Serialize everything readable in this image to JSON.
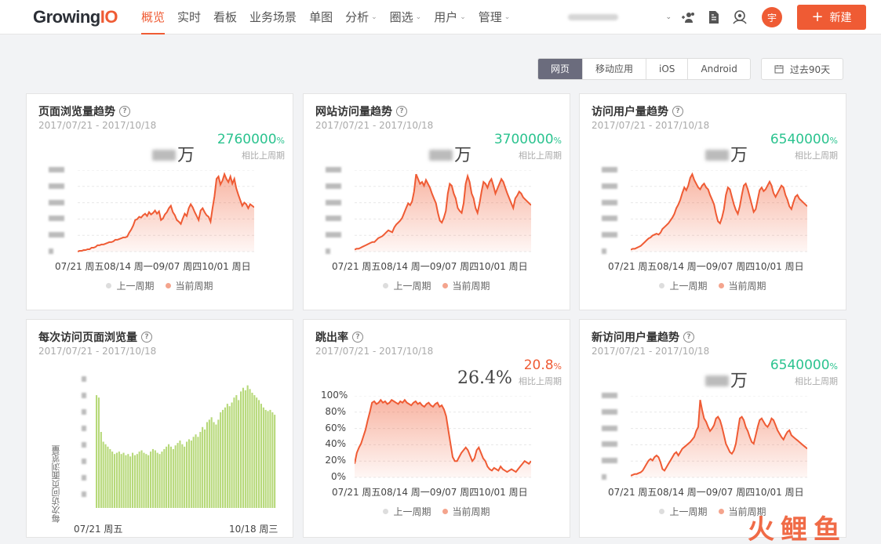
{
  "header": {
    "logo_main": "Growing",
    "logo_accent": "IO",
    "nav": [
      {
        "label": "概览",
        "active": true,
        "dropdown": false
      },
      {
        "label": "实时",
        "active": false,
        "dropdown": false
      },
      {
        "label": "看板",
        "active": false,
        "dropdown": false
      },
      {
        "label": "业务场景",
        "active": false,
        "dropdown": false
      },
      {
        "label": "单图",
        "active": false,
        "dropdown": false
      },
      {
        "label": "分析",
        "active": false,
        "dropdown": true
      },
      {
        "label": "圈选",
        "active": false,
        "dropdown": true
      },
      {
        "label": "用户",
        "active": false,
        "dropdown": true
      },
      {
        "label": "管理",
        "active": false,
        "dropdown": true
      }
    ],
    "avatar_text": "宇",
    "new_button": "新建"
  },
  "filters": {
    "platform_tabs": [
      "网页",
      "移动应用",
      "iOS",
      "Android"
    ],
    "active_tab": "网页",
    "date_range": "过去90天"
  },
  "legend": {
    "prev": "上一周期",
    "curr": "当前周期"
  },
  "colors": {
    "accent": "#ef5b34",
    "green": "#2bc38f",
    "bar": "#b7d97a"
  },
  "cards": [
    {
      "title": "页面浏览量趋势",
      "date": "2017/07/21 - 2017/10/18",
      "unit": "万",
      "pct": "2760000",
      "pct_symbol": "%",
      "compare": "相比上周期",
      "pct_color": "green",
      "xlabels": [
        "07/21 周五",
        "08/14 周一",
        "09/07 周四",
        "10/01 周日"
      ]
    },
    {
      "title": "网站访问量趋势",
      "date": "2017/07/21 - 2017/10/18",
      "unit": "万",
      "pct": "3700000",
      "pct_symbol": "%",
      "compare": "相比上周期",
      "pct_color": "green",
      "xlabels": [
        "07/21 周五",
        "08/14 周一",
        "09/07 周四",
        "10/01 周日"
      ]
    },
    {
      "title": "访问用户量趋势",
      "date": "2017/07/21 - 2017/10/18",
      "unit": "万",
      "pct": "6540000",
      "pct_symbol": "%",
      "compare": "相比上周期",
      "pct_color": "green",
      "xlabels": [
        "07/21 周五",
        "08/14 周一",
        "09/07 周四",
        "10/01 周日"
      ]
    },
    {
      "title": "每次访问页面浏览量",
      "date": "2017/07/21 - 2017/10/18",
      "ylabel": "每次访问页面浏览量",
      "xlabels": [
        "07/21 周五",
        "10/18 周三"
      ]
    },
    {
      "title": "跳出率",
      "date": "2017/07/21 - 2017/10/18",
      "value": "26.4%",
      "pct": "20.8",
      "pct_symbol": "%",
      "compare": "相比上周期",
      "pct_color": "red",
      "yticks": [
        "100%",
        "80%",
        "60%",
        "40%",
        "20%",
        "0%"
      ],
      "xlabels": [
        "07/21 周五",
        "08/14 周一",
        "09/07 周四",
        "10/01 周日"
      ]
    },
    {
      "title": "新访问用户量趋势",
      "date": "2017/07/21 - 2017/10/18",
      "unit": "万",
      "pct": "6540000",
      "pct_symbol": "%",
      "compare": "相比上周期",
      "pct_color": "green",
      "xlabels": [
        "07/21 周五",
        "08/14 周一",
        "09/07 周四",
        "10/01 周日"
      ]
    }
  ],
  "chart_data": [
    {
      "type": "area",
      "title": "页面浏览量趋势",
      "series": [
        {
          "name": "当前周期",
          "values": [
            0,
            1,
            1,
            2,
            2,
            3,
            3,
            5,
            5,
            6,
            8,
            8,
            9,
            9,
            10,
            11,
            12,
            12,
            13,
            15,
            15,
            16,
            17,
            18,
            18,
            19,
            24,
            28,
            33,
            40,
            41,
            44,
            43,
            46,
            48,
            45,
            50,
            47,
            49,
            52,
            48,
            51,
            40,
            42,
            47,
            50,
            55,
            58,
            50,
            46,
            40,
            38,
            35,
            42,
            48,
            45,
            55,
            60,
            56,
            50,
            45,
            40,
            52,
            55,
            50,
            46,
            44,
            38,
            55,
            70,
            92,
            95,
            85,
            90,
            98,
            92,
            88,
            95,
            86,
            92,
            80,
            72,
            65,
            58,
            62,
            60,
            55,
            60,
            58,
            56
          ]
        }
      ]
    },
    {
      "type": "area",
      "title": "网站访问量趋势",
      "series": [
        {
          "name": "当前周期",
          "values": [
            2,
            3,
            3,
            4,
            5,
            6,
            7,
            8,
            9,
            10,
            10,
            12,
            14,
            15,
            16,
            18,
            20,
            22,
            21,
            20,
            25,
            28,
            30,
            32,
            35,
            40,
            45,
            50,
            48,
            52,
            62,
            80,
            75,
            70,
            72,
            68,
            74,
            70,
            66,
            60,
            55,
            50,
            40,
            32,
            30,
            35,
            42,
            60,
            70,
            68,
            60,
            55,
            45,
            42,
            40,
            50,
            70,
            78,
            72,
            60,
            55,
            45,
            40,
            50,
            62,
            72,
            70,
            66,
            72,
            75,
            68,
            60,
            65,
            70,
            75,
            72,
            66,
            60,
            55,
            50,
            45,
            55,
            58,
            62,
            60,
            56,
            54,
            52,
            50,
            48
          ]
        }
      ]
    },
    {
      "type": "area",
      "title": "访问用户量趋势",
      "series": [
        {
          "name": "当前周期",
          "values": [
            2,
            3,
            3,
            4,
            5,
            6,
            8,
            10,
            12,
            14,
            15,
            17,
            18,
            19,
            18,
            20,
            24,
            26,
            28,
            30,
            33,
            36,
            40,
            46,
            50,
            55,
            62,
            68,
            65,
            70,
            78,
            82,
            76,
            72,
            68,
            66,
            70,
            72,
            68,
            66,
            60,
            55,
            50,
            40,
            32,
            30,
            36,
            45,
            60,
            68,
            66,
            58,
            50,
            44,
            40,
            48,
            60,
            70,
            72,
            66,
            58,
            50,
            42,
            45,
            55,
            65,
            68,
            64,
            66,
            70,
            74,
            70,
            62,
            58,
            62,
            66,
            70,
            68,
            60,
            55,
            48,
            45,
            52,
            58,
            60,
            56,
            54,
            52,
            50,
            48
          ]
        }
      ]
    },
    {
      "type": "bar",
      "title": "每次访问页面浏览量",
      "ylabel": "每次访问页面浏览量",
      "series": [
        {
          "name": "当前周期",
          "values": [
            92,
            90,
            62,
            54,
            52,
            50,
            48,
            46,
            44,
            45,
            46,
            44,
            45,
            43,
            44,
            42,
            45,
            43,
            44,
            46,
            47,
            45,
            44,
            43,
            46,
            48,
            47,
            45,
            44,
            46,
            48,
            50,
            52,
            50,
            48,
            51,
            53,
            55,
            52,
            50,
            54,
            56,
            55,
            58,
            60,
            58,
            62,
            66,
            64,
            70,
            72,
            74,
            70,
            68,
            72,
            78,
            80,
            82,
            85,
            83,
            86,
            90,
            92,
            88,
            95,
            98,
            96,
            100,
            97,
            94,
            92,
            90,
            88,
            85,
            82,
            80,
            79,
            80,
            78,
            76
          ]
        }
      ]
    },
    {
      "type": "area",
      "title": "跳出率",
      "ylim": [
        0,
        100
      ],
      "yticks": [
        "100%",
        "80%",
        "60%",
        "40%",
        "20%",
        "0%"
      ],
      "series": [
        {
          "name": "当前周期",
          "values": [
            10,
            18,
            22,
            25,
            30,
            35,
            42,
            48,
            55,
            56,
            54,
            55,
            57,
            55,
            56,
            54,
            55,
            57,
            56,
            55,
            54,
            56,
            55,
            57,
            55,
            54,
            53,
            55,
            56,
            54,
            55,
            53,
            52,
            54,
            55,
            53,
            52,
            54,
            55,
            52,
            53,
            50,
            45,
            35,
            25,
            15,
            12,
            12,
            15,
            18,
            20,
            22,
            20,
            16,
            12,
            14,
            20,
            22,
            18,
            14,
            12,
            8,
            6,
            5,
            7,
            6,
            5,
            8,
            6,
            5,
            4,
            5,
            6,
            5,
            4,
            6,
            8,
            10,
            12,
            11,
            10,
            12
          ]
        }
      ]
    },
    {
      "type": "area",
      "title": "新访问用户量趋势",
      "series": [
        {
          "name": "当前周期",
          "values": [
            2,
            3,
            4,
            4,
            5,
            6,
            8,
            12,
            16,
            20,
            22,
            20,
            24,
            26,
            24,
            18,
            10,
            8,
            12,
            16,
            20,
            24,
            28,
            30,
            26,
            30,
            34,
            36,
            38,
            40,
            42,
            45,
            48,
            55,
            60,
            92,
            80,
            70,
            66,
            60,
            55,
            58,
            62,
            70,
            72,
            68,
            60,
            50,
            40,
            35,
            30,
            28,
            32,
            40,
            55,
            70,
            72,
            68,
            60,
            55,
            48,
            42,
            40,
            50,
            60,
            68,
            70,
            66,
            62,
            60,
            64,
            70,
            68,
            62,
            56,
            52,
            48,
            45,
            50,
            54,
            56,
            50,
            48,
            46,
            44,
            42,
            40,
            38,
            36,
            34
          ]
        }
      ]
    }
  ]
}
